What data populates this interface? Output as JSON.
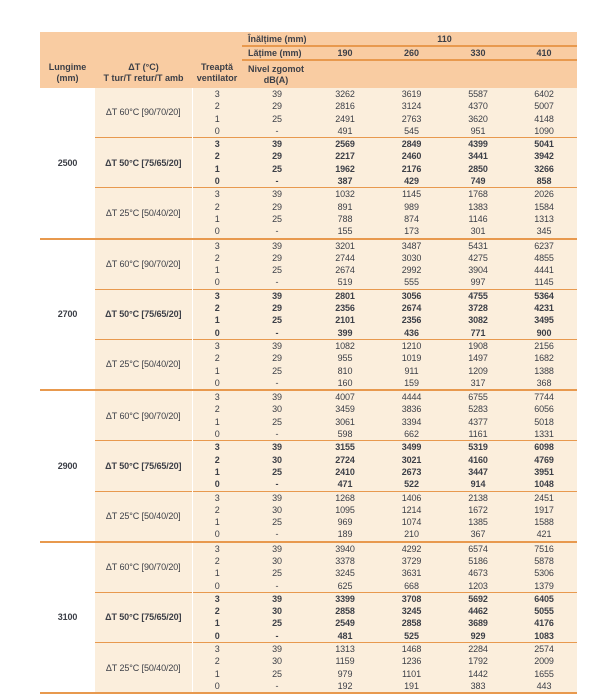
{
  "colors": {
    "header_bg": "#F9CCA2",
    "body_bg": "#FBEEDC",
    "left_col_bg": "#FFFFFF",
    "line": "#E8994E",
    "text": "#3C3F47"
  },
  "header": {
    "inaltime_label": "Înălțime (mm)",
    "inaltime_value": "110",
    "latime_label": "Lățime (mm)",
    "widths": [
      "190",
      "260",
      "330",
      "410"
    ],
    "lungime_1": "Lungime",
    "lungime_2": "(mm)",
    "dt_1": "ΔT (°C)",
    "dt_2": "T tur/T retur/T amb",
    "treapta_1": "Treaptă",
    "treapta_2": "ventilator",
    "zgomot_1": "Nivel zgomot",
    "zgomot_2": "dB(A)"
  },
  "groups": [
    {
      "lungime": "2500",
      "subgroups": [
        {
          "dt": "ΔT 60°C [90/70/20]",
          "bold": false,
          "rows": [
            {
              "treapta": "3",
              "zgomot": "39",
              "values": [
                "3262",
                "3619",
                "5587",
                "6402"
              ]
            },
            {
              "treapta": "2",
              "zgomot": "29",
              "values": [
                "2816",
                "3124",
                "4370",
                "5007"
              ]
            },
            {
              "treapta": "1",
              "zgomot": "25",
              "values": [
                "2491",
                "2763",
                "3620",
                "4148"
              ]
            },
            {
              "treapta": "0",
              "zgomot": "-",
              "values": [
                "491",
                "545",
                "951",
                "1090"
              ]
            }
          ]
        },
        {
          "dt": "ΔT 50°C [75/65/20]",
          "bold": true,
          "rows": [
            {
              "treapta": "3",
              "zgomot": "39",
              "values": [
                "2569",
                "2849",
                "4399",
                "5041"
              ]
            },
            {
              "treapta": "2",
              "zgomot": "29",
              "values": [
                "2217",
                "2460",
                "3441",
                "3942"
              ]
            },
            {
              "treapta": "1",
              "zgomot": "25",
              "values": [
                "1962",
                "2176",
                "2850",
                "3266"
              ]
            },
            {
              "treapta": "0",
              "zgomot": "-",
              "values": [
                "387",
                "429",
                "749",
                "858"
              ]
            }
          ]
        },
        {
          "dt": "ΔT 25°C [50/40/20]",
          "bold": false,
          "rows": [
            {
              "treapta": "3",
              "zgomot": "39",
              "values": [
                "1032",
                "1145",
                "1768",
                "2026"
              ]
            },
            {
              "treapta": "2",
              "zgomot": "29",
              "values": [
                "891",
                "989",
                "1383",
                "1584"
              ]
            },
            {
              "treapta": "1",
              "zgomot": "25",
              "values": [
                "788",
                "874",
                "1146",
                "1313"
              ]
            },
            {
              "treapta": "0",
              "zgomot": "-",
              "values": [
                "155",
                "173",
                "301",
                "345"
              ]
            }
          ]
        }
      ]
    },
    {
      "lungime": "2700",
      "subgroups": [
        {
          "dt": "ΔT 60°C [90/70/20]",
          "bold": false,
          "rows": [
            {
              "treapta": "3",
              "zgomot": "39",
              "values": [
                "3201",
                "3487",
                "5431",
                "6237"
              ]
            },
            {
              "treapta": "2",
              "zgomot": "29",
              "values": [
                "2744",
                "3030",
                "4275",
                "4855"
              ]
            },
            {
              "treapta": "1",
              "zgomot": "25",
              "values": [
                "2674",
                "2992",
                "3904",
                "4441"
              ]
            },
            {
              "treapta": "0",
              "zgomot": "-",
              "values": [
                "519",
                "555",
                "997",
                "1145"
              ]
            }
          ]
        },
        {
          "dt": "ΔT 50°C [75/65/20]",
          "bold": true,
          "rows": [
            {
              "treapta": "3",
              "zgomot": "39",
              "values": [
                "2801",
                "3056",
                "4755",
                "5364"
              ]
            },
            {
              "treapta": "2",
              "zgomot": "29",
              "values": [
                "2356",
                "2674",
                "3728",
                "4231"
              ]
            },
            {
              "treapta": "1",
              "zgomot": "25",
              "values": [
                "2101",
                "2356",
                "3082",
                "3495"
              ]
            },
            {
              "treapta": "0",
              "zgomot": "-",
              "values": [
                "399",
                "436",
                "771",
                "900"
              ]
            }
          ]
        },
        {
          "dt": "ΔT 25°C [50/40/20]",
          "bold": false,
          "rows": [
            {
              "treapta": "3",
              "zgomot": "39",
              "values": [
                "1082",
                "1210",
                "1908",
                "2156"
              ]
            },
            {
              "treapta": "2",
              "zgomot": "29",
              "values": [
                "955",
                "1019",
                "1497",
                "1682"
              ]
            },
            {
              "treapta": "1",
              "zgomot": "25",
              "values": [
                "810",
                "911",
                "1209",
                "1388"
              ]
            },
            {
              "treapta": "0",
              "zgomot": "-",
              "values": [
                "160",
                "159",
                "317",
                "368"
              ]
            }
          ]
        }
      ]
    },
    {
      "lungime": "2900",
      "subgroups": [
        {
          "dt": "ΔT 60°C [90/70/20]",
          "bold": false,
          "rows": [
            {
              "treapta": "3",
              "zgomot": "39",
              "values": [
                "4007",
                "4444",
                "6755",
                "7744"
              ]
            },
            {
              "treapta": "2",
              "zgomot": "30",
              "values": [
                "3459",
                "3836",
                "5283",
                "6056"
              ]
            },
            {
              "treapta": "1",
              "zgomot": "25",
              "values": [
                "3061",
                "3394",
                "4377",
                "5018"
              ]
            },
            {
              "treapta": "0",
              "zgomot": "-",
              "values": [
                "598",
                "662",
                "1161",
                "1331"
              ]
            }
          ]
        },
        {
          "dt": "ΔT 50°C [75/65/20]",
          "bold": true,
          "rows": [
            {
              "treapta": "3",
              "zgomot": "39",
              "values": [
                "3155",
                "3499",
                "5319",
                "6098"
              ]
            },
            {
              "treapta": "2",
              "zgomot": "30",
              "values": [
                "2724",
                "3021",
                "4160",
                "4769"
              ]
            },
            {
              "treapta": "1",
              "zgomot": "25",
              "values": [
                "2410",
                "2673",
                "3447",
                "3951"
              ]
            },
            {
              "treapta": "0",
              "zgomot": "-",
              "values": [
                "471",
                "522",
                "914",
                "1048"
              ]
            }
          ]
        },
        {
          "dt": "ΔT 25°C [50/40/20]",
          "bold": false,
          "rows": [
            {
              "treapta": "3",
              "zgomot": "39",
              "values": [
                "1268",
                "1406",
                "2138",
                "2451"
              ]
            },
            {
              "treapta": "2",
              "zgomot": "30",
              "values": [
                "1095",
                "1214",
                "1672",
                "1917"
              ]
            },
            {
              "treapta": "1",
              "zgomot": "25",
              "values": [
                "969",
                "1074",
                "1385",
                "1588"
              ]
            },
            {
              "treapta": "0",
              "zgomot": "-",
              "values": [
                "189",
                "210",
                "367",
                "421"
              ]
            }
          ]
        }
      ]
    },
    {
      "lungime": "3100",
      "subgroups": [
        {
          "dt": "ΔT 60°C [90/70/20]",
          "bold": false,
          "rows": [
            {
              "treapta": "3",
              "zgomot": "39",
              "values": [
                "3940",
                "4292",
                "6574",
                "7516"
              ]
            },
            {
              "treapta": "2",
              "zgomot": "30",
              "values": [
                "3378",
                "3729",
                "5186",
                "5878"
              ]
            },
            {
              "treapta": "1",
              "zgomot": "25",
              "values": [
                "3245",
                "3631",
                "4673",
                "5306"
              ]
            },
            {
              "treapta": "0",
              "zgomot": "-",
              "values": [
                "625",
                "668",
                "1203",
                "1379"
              ]
            }
          ]
        },
        {
          "dt": "ΔT 50°C [75/65/20]",
          "bold": true,
          "rows": [
            {
              "treapta": "3",
              "zgomot": "39",
              "values": [
                "3399",
                "3708",
                "5692",
                "6405"
              ]
            },
            {
              "treapta": "2",
              "zgomot": "30",
              "values": [
                "2858",
                "3245",
                "4462",
                "5055"
              ]
            },
            {
              "treapta": "1",
              "zgomot": "25",
              "values": [
                "2549",
                "2858",
                "3689",
                "4176"
              ]
            },
            {
              "treapta": "0",
              "zgomot": "-",
              "values": [
                "481",
                "525",
                "929",
                "1083"
              ]
            }
          ]
        },
        {
          "dt": "ΔT 25°C [50/40/20]",
          "bold": false,
          "rows": [
            {
              "treapta": "3",
              "zgomot": "39",
              "values": [
                "1313",
                "1468",
                "2284",
                "2574"
              ]
            },
            {
              "treapta": "2",
              "zgomot": "30",
              "values": [
                "1159",
                "1236",
                "1792",
                "2009"
              ]
            },
            {
              "treapta": "1",
              "zgomot": "25",
              "values": [
                "979",
                "1101",
                "1442",
                "1655"
              ]
            },
            {
              "treapta": "0",
              "zgomot": "-",
              "values": [
                "192",
                "191",
                "383",
                "443"
              ]
            }
          ]
        }
      ]
    }
  ]
}
